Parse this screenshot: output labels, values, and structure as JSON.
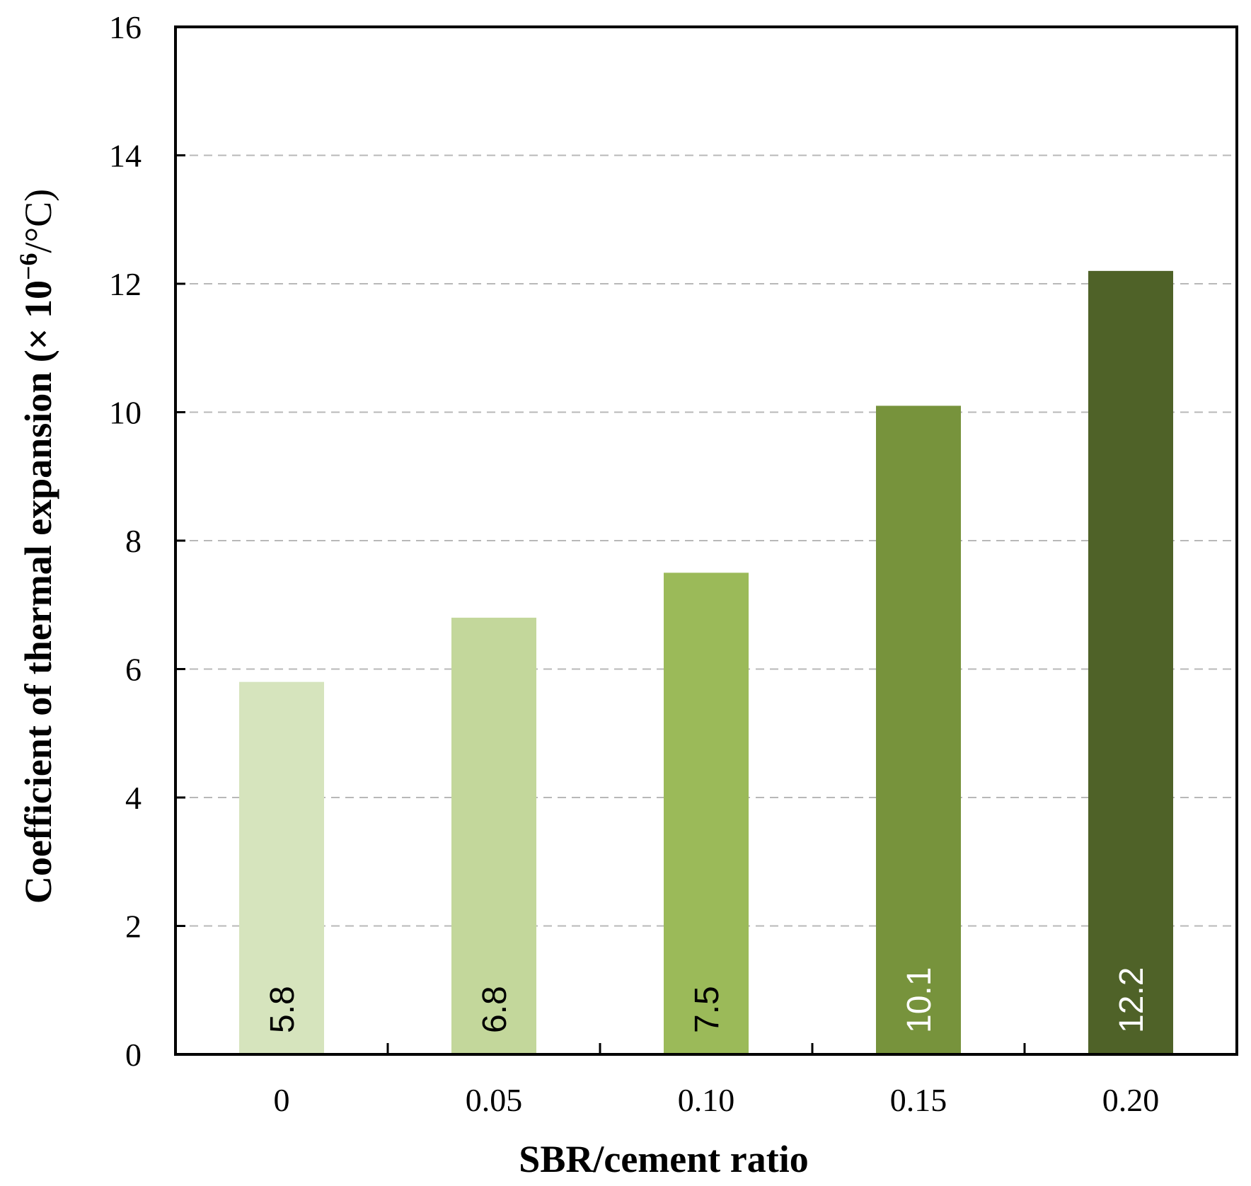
{
  "chart_data": {
    "type": "bar",
    "title": "",
    "xlabel": "SBR/cement ratio",
    "ylabel_main": "Coefficient of thermal expansion (× 10",
    "ylabel_sup": "−6",
    "ylabel_tail": "/°C)",
    "categories": [
      "0",
      "0.05",
      "0.10",
      "0.15",
      "0.20"
    ],
    "values": [
      5.8,
      6.8,
      7.5,
      10.1,
      12.2
    ],
    "value_labels": [
      "5.8",
      "6.8",
      "7.5",
      "10.1",
      "12.2"
    ],
    "bar_colors": [
      "#d6e4bd",
      "#c3d79b",
      "#9bba59",
      "#77933c",
      "#4f6228"
    ],
    "label_colors": [
      "#000000",
      "#000000",
      "#000000",
      "#ffffff",
      "#ffffff"
    ],
    "ylim": [
      0,
      16
    ],
    "yticks": [
      "0",
      "2",
      "4",
      "6",
      "8",
      "10",
      "12",
      "14",
      "16"
    ],
    "grid": true,
    "legend": "none"
  }
}
